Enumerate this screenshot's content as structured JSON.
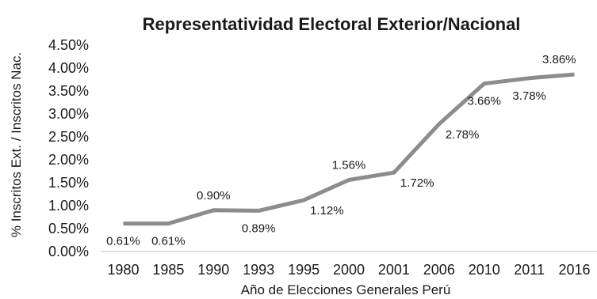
{
  "chart_data": {
    "type": "line",
    "title": "Representatividad Electoral Exterior/Nacional",
    "xlabel": "Año de Elecciones Generales Perú",
    "ylabel": "% Inscritos Ext. / Inscritos Nac.",
    "categories": [
      "1980",
      "1985",
      "1990",
      "1993",
      "1995",
      "2000",
      "2001",
      "2006",
      "2010",
      "2011",
      "2016"
    ],
    "series": [
      {
        "values": [
          0.61,
          0.61,
          0.9,
          0.89,
          1.12,
          1.56,
          1.72,
          2.78,
          3.66,
          3.78,
          3.86
        ],
        "data_labels": [
          "0.61%",
          "0.61%",
          "0.90%",
          "0.89%",
          "1.12%",
          "1.56%",
          "1.72%",
          "2.78%",
          "3.66%",
          "3.78%",
          "3.86%"
        ],
        "color": "#8c8c8c"
      }
    ],
    "ylim": [
      0,
      4.5
    ],
    "yticks": [
      0,
      0.5,
      1.0,
      1.5,
      2.0,
      2.5,
      3.0,
      3.5,
      4.0,
      4.5
    ],
    "ytick_labels": [
      "0.00%",
      "0.50%",
      "1.00%",
      "1.50%",
      "2.00%",
      "2.50%",
      "3.00%",
      "3.50%",
      "4.00%",
      "4.50%"
    ],
    "grid": false,
    "legend": "none"
  }
}
